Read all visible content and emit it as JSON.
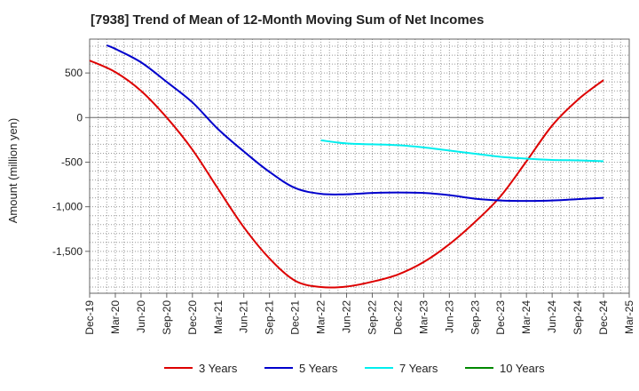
{
  "chart_data": {
    "type": "line",
    "title": "[7938]  Trend of Mean of 12-Month Moving Sum of Net Incomes",
    "ylabel": "Amount (million yen)",
    "xlabel": "",
    "ylim": [
      -1970,
      880
    ],
    "yticks": [
      500,
      0,
      -500,
      -1000,
      -1500
    ],
    "ytick_labels": [
      "500",
      "0",
      "-500",
      "-1,000",
      "-1,500"
    ],
    "xlim": [
      "2019-12",
      "2025-03"
    ],
    "xticks": [
      "2019-12",
      "2020-03",
      "2020-06",
      "2020-09",
      "2020-12",
      "2021-03",
      "2021-06",
      "2021-09",
      "2021-12",
      "2022-03",
      "2022-06",
      "2022-09",
      "2022-12",
      "2023-03",
      "2023-06",
      "2023-09",
      "2023-12",
      "2024-03",
      "2024-06",
      "2024-09",
      "2024-12",
      "2025-03"
    ],
    "xtick_labels": [
      "Dec-19",
      "Mar-20",
      "Jun-20",
      "Sep-20",
      "Dec-20",
      "Mar-21",
      "Jun-21",
      "Sep-21",
      "Dec-21",
      "Mar-22",
      "Jun-22",
      "Sep-22",
      "Dec-22",
      "Mar-23",
      "Jun-23",
      "Sep-23",
      "Dec-23",
      "Mar-24",
      "Jun-24",
      "Sep-24",
      "Dec-24",
      "Mar-25"
    ],
    "grid": true,
    "legend_position": "bottom",
    "series": [
      {
        "name": "3 Years",
        "color": "#dd0000",
        "points": [
          [
            "2019-12",
            640
          ],
          [
            "2020-03",
            510
          ],
          [
            "2020-06",
            300
          ],
          [
            "2020-09",
            0
          ],
          [
            "2020-12",
            -360
          ],
          [
            "2021-03",
            -800
          ],
          [
            "2021-06",
            -1230
          ],
          [
            "2021-09",
            -1580
          ],
          [
            "2021-12",
            -1830
          ],
          [
            "2022-03",
            -1900
          ],
          [
            "2022-06",
            -1895
          ],
          [
            "2022-09",
            -1840
          ],
          [
            "2022-12",
            -1760
          ],
          [
            "2023-03",
            -1620
          ],
          [
            "2023-06",
            -1420
          ],
          [
            "2023-09",
            -1170
          ],
          [
            "2023-12",
            -880
          ],
          [
            "2024-03",
            -490
          ],
          [
            "2024-06",
            -90
          ],
          [
            "2024-09",
            200
          ],
          [
            "2024-12",
            420
          ]
        ]
      },
      {
        "name": "5 Years",
        "color": "#0000cc",
        "points": [
          [
            "2020-02",
            810
          ],
          [
            "2020-03",
            770
          ],
          [
            "2020-06",
            620
          ],
          [
            "2020-09",
            400
          ],
          [
            "2020-12",
            170
          ],
          [
            "2021-03",
            -130
          ],
          [
            "2021-06",
            -380
          ],
          [
            "2021-09",
            -610
          ],
          [
            "2021-12",
            -790
          ],
          [
            "2022-03",
            -855
          ],
          [
            "2022-06",
            -860
          ],
          [
            "2022-09",
            -845
          ],
          [
            "2022-12",
            -840
          ],
          [
            "2023-03",
            -845
          ],
          [
            "2023-06",
            -870
          ],
          [
            "2023-09",
            -910
          ],
          [
            "2023-12",
            -930
          ],
          [
            "2024-03",
            -935
          ],
          [
            "2024-06",
            -930
          ],
          [
            "2024-09",
            -915
          ],
          [
            "2024-12",
            -900
          ]
        ]
      },
      {
        "name": "7 Years",
        "color": "#00eeee",
        "points": [
          [
            "2022-03",
            -255
          ],
          [
            "2022-06",
            -290
          ],
          [
            "2022-09",
            -300
          ],
          [
            "2022-12",
            -310
          ],
          [
            "2023-03",
            -335
          ],
          [
            "2023-06",
            -370
          ],
          [
            "2023-09",
            -405
          ],
          [
            "2023-12",
            -440
          ],
          [
            "2024-03",
            -460
          ],
          [
            "2024-06",
            -475
          ],
          [
            "2024-09",
            -480
          ],
          [
            "2024-12",
            -490
          ]
        ]
      },
      {
        "name": "10 Years",
        "color": "#008800",
        "points": []
      }
    ]
  }
}
